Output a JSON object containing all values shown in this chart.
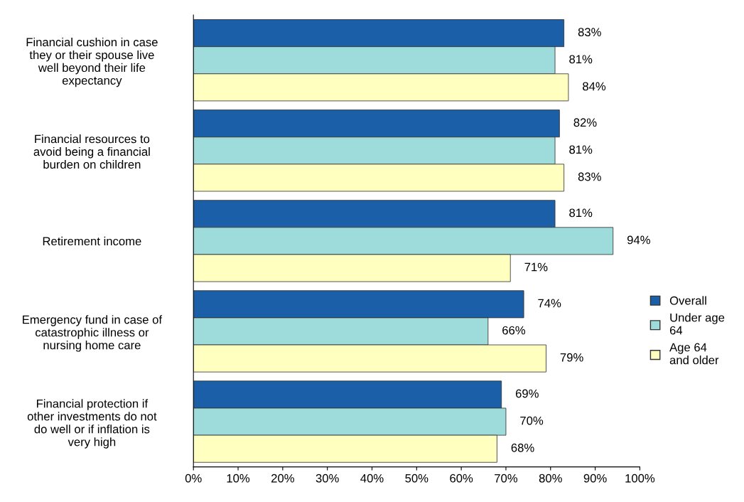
{
  "chart_data": {
    "type": "bar",
    "orientation": "horizontal",
    "categories": [
      "Financial cushion in case they or their spouse live well beyond their life expectancy",
      "Financial resources to avoid being a financial burden on children",
      "Retirement income",
      "Emergency fund in case of catastrophic illness or nursing home care",
      "Financial protection if other investments do not do well or if inflation is very high"
    ],
    "series": [
      {
        "name": "Overall",
        "color": "#1a5fa8",
        "values": [
          83,
          82,
          81,
          74,
          69
        ],
        "value_labels": [
          "83%",
          "82%",
          "81%",
          "74%",
          "69%"
        ]
      },
      {
        "name": "Under age 64",
        "color": "#9edcdc",
        "values": [
          81,
          81,
          94,
          66,
          70
        ],
        "value_labels": [
          "81%",
          "81%",
          "94%",
          "66%",
          "70%"
        ]
      },
      {
        "name": "Age 64 and older",
        "color": "#ffffc0",
        "values": [
          84,
          83,
          71,
          79,
          68
        ],
        "value_labels": [
          "84%",
          "83%",
          "71%",
          "79%",
          "68%"
        ]
      }
    ],
    "xlim": [
      0,
      100
    ],
    "xticks": [
      {
        "value": 0,
        "label": "0%"
      },
      {
        "value": 10,
        "label": "10%"
      },
      {
        "value": 20,
        "label": "20%"
      },
      {
        "value": 30,
        "label": "30%"
      },
      {
        "value": 40,
        "label": "40%"
      },
      {
        "value": 50,
        "label": "50%"
      },
      {
        "value": 60,
        "label": "60%"
      },
      {
        "value": 70,
        "label": "70%"
      },
      {
        "value": 80,
        "label": "80%"
      },
      {
        "value": 90,
        "label": "90%"
      },
      {
        "value": 100,
        "label": "100%"
      }
    ],
    "grid": false,
    "legend": "right"
  }
}
